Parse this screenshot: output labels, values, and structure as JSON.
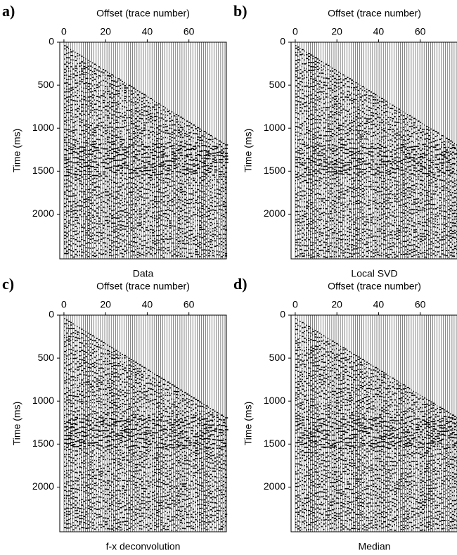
{
  "chart_data": [
    {
      "type": "seismic",
      "panel_label": "a)",
      "title": "Offset (trace number)",
      "ylabel": "Time (ms)",
      "caption": "Data",
      "xlim": [
        -2,
        78
      ],
      "xticks": [
        0,
        20,
        40,
        60
      ],
      "ylim": [
        0,
        2520
      ],
      "yticks": [
        0,
        500,
        1000,
        1500,
        2000
      ]
    },
    {
      "type": "seismic",
      "panel_label": "b)",
      "title": "Offset (trace number)",
      "ylabel": "Time (ms)",
      "caption": "Local SVD",
      "xlim": [
        -2,
        78
      ],
      "xticks": [
        0,
        20,
        40,
        60
      ],
      "ylim": [
        0,
        2520
      ],
      "yticks": [
        0,
        500,
        1000,
        1500,
        2000
      ]
    },
    {
      "type": "seismic",
      "panel_label": "c)",
      "title": "Offset (trace number)",
      "ylabel": "Time (ms)",
      "caption": "f-x deconvolution",
      "xlim": [
        -2,
        78
      ],
      "xticks": [
        0,
        20,
        40,
        60
      ],
      "ylim": [
        0,
        2520
      ],
      "yticks": [
        0,
        500,
        1000,
        1500,
        2000
      ]
    },
    {
      "type": "seismic",
      "panel_label": "d)",
      "title": "Offset (trace number)",
      "ylabel": "Time (ms)",
      "caption": "Median",
      "xlim": [
        -2,
        78
      ],
      "xticks": [
        0,
        20,
        40,
        60
      ],
      "ylim": [
        0,
        2520
      ],
      "yticks": [
        0,
        500,
        1000,
        1500,
        2000
      ]
    }
  ]
}
